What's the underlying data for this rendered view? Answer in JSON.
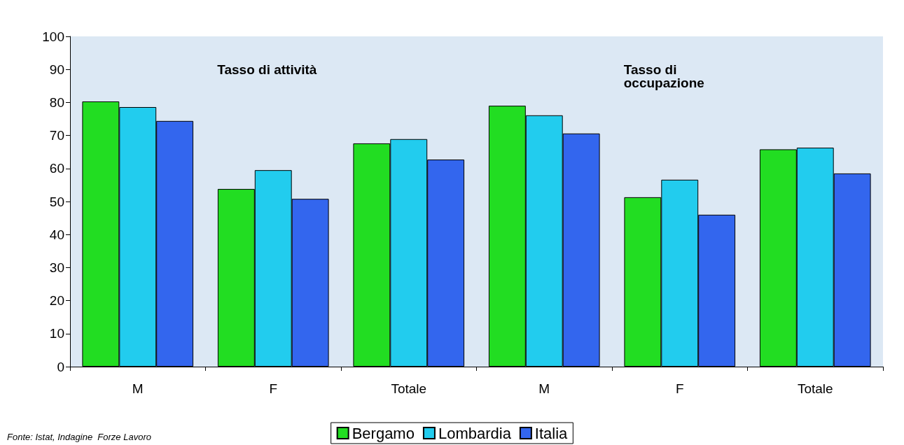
{
  "chart_data": {
    "type": "bar",
    "categories": [
      "M",
      "F",
      "Totale",
      "M",
      "F",
      "Totale"
    ],
    "series": [
      {
        "name": "Bergamo",
        "color": "#22dd22",
        "values": [
          80.3,
          53.8,
          67.6,
          79.0,
          51.3,
          65.8
        ]
      },
      {
        "name": "Lombardia",
        "color": "#22ccee",
        "values": [
          78.6,
          59.5,
          68.9,
          76.1,
          56.6,
          66.3
        ]
      },
      {
        "name": "Italia",
        "color": "#3366ee",
        "values": [
          74.4,
          50.8,
          62.7,
          70.6,
          46.0,
          58.5
        ]
      }
    ],
    "ylim": [
      0,
      100
    ],
    "yticks": [
      0,
      10,
      20,
      30,
      40,
      50,
      60,
      70,
      80,
      90,
      100
    ],
    "grid": false,
    "legend": "bottom",
    "annotations": [
      "Tasso di attività",
      "Tasso di occupazione",
      "Fonte: Istat, Indagine  Forze Lavoro"
    ]
  }
}
